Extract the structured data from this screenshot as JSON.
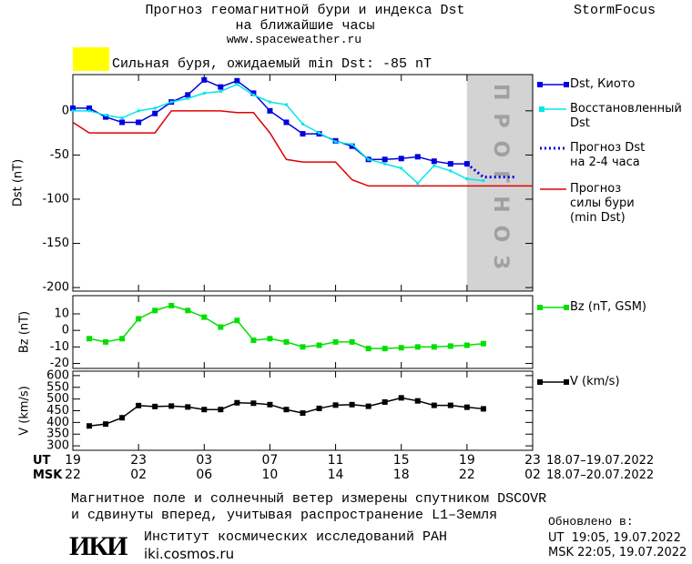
{
  "header": {
    "title": "Прогноз геомагнитной бури и индекса Dst",
    "subtitle": "на ближайшие часы",
    "url": "www.spaceweather.ru",
    "brand": "StormFocus",
    "alert": "Сильная буря, ожидаемый min Dst: -85 nT",
    "alert_color": "#ffff00"
  },
  "time_axis": {
    "xlim": [
      0,
      28
    ],
    "ut_label": "UT",
    "msk_label": "MSK",
    "ut_ticks": [
      {
        "value": 0,
        "label": "19"
      },
      {
        "value": 4,
        "label": "23"
      },
      {
        "value": 8,
        "label": "03"
      },
      {
        "value": 12,
        "label": "07"
      },
      {
        "value": 16,
        "label": "11"
      },
      {
        "value": 20,
        "label": "15"
      },
      {
        "value": 24,
        "label": "19"
      },
      {
        "value": 28,
        "label": "23"
      }
    ],
    "msk_ticks": [
      {
        "value": 0,
        "label": "22"
      },
      {
        "value": 4,
        "label": "02"
      },
      {
        "value": 8,
        "label": "06"
      },
      {
        "value": 12,
        "label": "10"
      },
      {
        "value": 16,
        "label": "14"
      },
      {
        "value": 20,
        "label": "18"
      },
      {
        "value": 24,
        "label": "22"
      },
      {
        "value": 28,
        "label": "02"
      }
    ],
    "ut_range": "18.07–19.07.2022",
    "msk_range": "18.07–20.07.2022"
  },
  "chart_data": [
    {
      "type": "line",
      "ylabel": "Dst (nT)",
      "ylim": [
        -204,
        41
      ],
      "yticks": [
        0,
        -50,
        -100,
        -150,
        -200
      ],
      "forecast_region": {
        "x": [
          24,
          28
        ],
        "label": "ПРОГНОЗ",
        "color": "#d3d3d3"
      },
      "series": [
        {
          "name": "Dst, Киото",
          "color": "#0000e0",
          "marker": "square",
          "dash": false,
          "x": [
            0,
            1,
            2,
            3,
            4,
            5,
            6,
            7,
            8,
            9,
            10,
            11,
            12,
            13,
            14,
            15,
            16,
            17,
            18,
            19,
            20,
            21,
            22,
            23,
            24
          ],
          "values": [
            3,
            3,
            -7,
            -13,
            -13,
            -3,
            10,
            18,
            35,
            27,
            34,
            20,
            0,
            -13,
            -26,
            -26,
            -34,
            -40,
            -55,
            -55,
            -54,
            -52,
            -57,
            -60,
            -60
          ]
        },
        {
          "name": "Восстановленный\nDst",
          "color": "#00e8e8",
          "marker": "dot",
          "dash": false,
          "x": [
            0,
            1,
            2,
            3,
            4,
            5,
            6,
            7,
            8,
            9,
            10,
            11,
            12,
            13,
            14,
            15,
            16,
            17,
            18,
            19,
            20,
            21,
            22,
            23,
            24,
            25
          ],
          "values": [
            0,
            0,
            -5,
            -8,
            0,
            3,
            10,
            14,
            20,
            22,
            30,
            18,
            10,
            7,
            -15,
            -25,
            -35,
            -38,
            -55,
            -60,
            -65,
            -82,
            -62,
            -68,
            -77,
            -79
          ]
        },
        {
          "name": "Прогноз Dst\nна 2-4 часа",
          "color": "#0000e0",
          "marker": "none",
          "dash": true,
          "x": [
            24,
            25,
            27
          ],
          "values": [
            -60,
            -75,
            -75
          ]
        },
        {
          "name": "Прогноз\nсилы бури\n(min Dst)",
          "color": "#e00000",
          "marker": "none",
          "dash": false,
          "x": [
            0,
            1,
            5,
            6,
            9,
            10,
            11,
            12,
            13,
            14,
            16,
            17,
            18,
            28
          ],
          "values": [
            -13,
            -25,
            -25,
            0,
            0,
            -2,
            -2,
            -25,
            -55,
            -58,
            -58,
            -78,
            -85,
            -85
          ]
        }
      ]
    },
    {
      "type": "line",
      "ylabel": "Bz (nT)",
      "ylim": [
        -23,
        21
      ],
      "yticks": [
        10,
        0,
        -10,
        -20
      ],
      "series": [
        {
          "name": "Bz (nT, GSM)",
          "color": "#00e000",
          "marker": "square",
          "dash": false,
          "x": [
            1,
            2,
            3,
            4,
            5,
            6,
            7,
            8,
            9,
            10,
            11,
            12,
            13,
            14,
            15,
            16,
            17,
            18,
            19,
            20,
            21,
            22,
            23,
            24,
            25
          ],
          "values": [
            -5,
            -7,
            -5,
            7,
            12,
            15,
            12,
            8,
            2,
            6,
            -6,
            -5,
            -7,
            -10,
            -9,
            -7,
            -7,
            -11,
            -11,
            -10.5,
            -10,
            -10,
            -9.5,
            -9,
            -8
          ]
        }
      ]
    },
    {
      "type": "line",
      "ylabel": "V (km/s)",
      "ylim": [
        281,
        619
      ],
      "yticks": [
        600,
        550,
        500,
        450,
        400,
        350,
        300
      ],
      "series": [
        {
          "name": "V (km/s)",
          "color": "#000000",
          "marker": "square",
          "dash": false,
          "x": [
            1,
            2,
            3,
            4,
            5,
            6,
            7,
            8,
            9,
            10,
            11,
            12,
            13,
            14,
            15,
            16,
            17,
            18,
            19,
            20,
            21,
            22,
            23,
            24,
            25
          ],
          "values": [
            385,
            393,
            420,
            472,
            468,
            470,
            466,
            455,
            455,
            484,
            482,
            476,
            455,
            440,
            460,
            474,
            476,
            469,
            487,
            505,
            492,
            473,
            473,
            465,
            458
          ]
        }
      ]
    }
  ],
  "footer": {
    "note": "Магнитное поле и солнечный ветер измерены спутником DSCOVR\nи сдвинуты вперед, учитывая распространение L1–Земля",
    "logo": "ИКИ",
    "institute": "Институт космических исследований РАН",
    "site": "iki.cosmos.ru",
    "updated": "Обновлено в:",
    "updated_ut": "UT  19:05, 19.07.2022",
    "updated_msk": "MSK 22:05, 19.07.2022"
  }
}
